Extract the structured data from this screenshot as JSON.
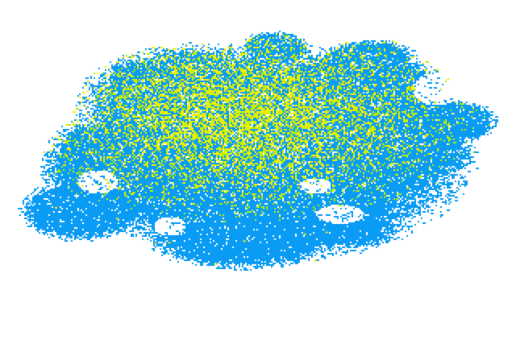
{
  "image": {
    "icon": "speckled-cloud-image",
    "colors": {
      "background": "#ffffff",
      "primary": "#0a9cf5",
      "secondary": "#f0f000",
      "tertiary": "#b4f000"
    }
  }
}
